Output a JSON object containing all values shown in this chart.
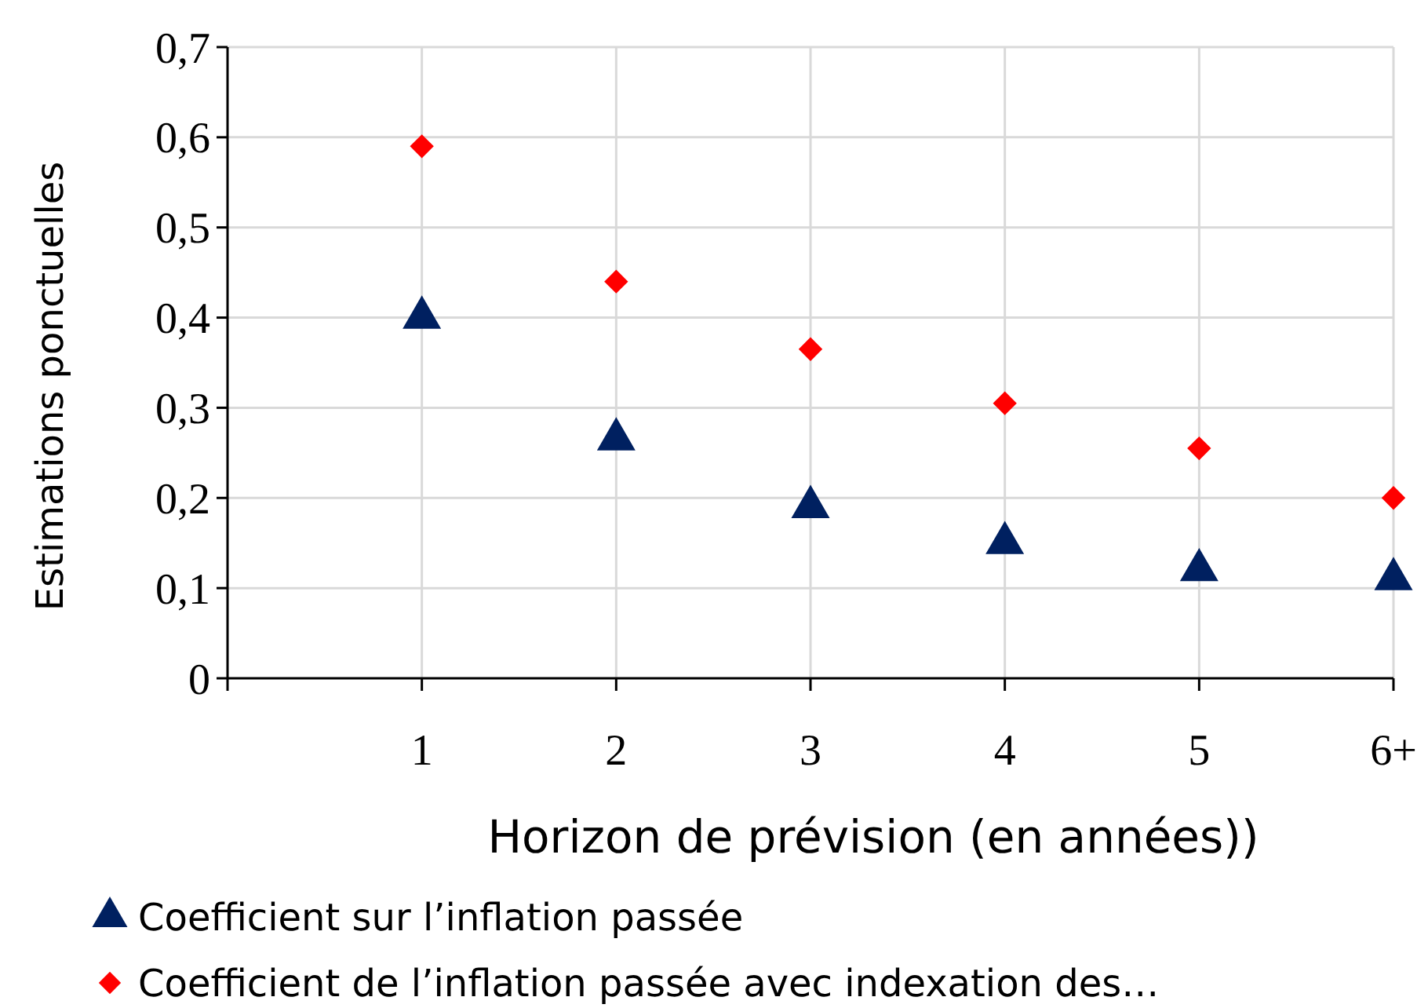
{
  "chart_data": {
    "type": "scatter",
    "xlabel": "Horizon de prévision (en années))",
    "ylabel": "Estimations ponctuelles",
    "x": [
      1,
      2,
      3,
      4,
      5,
      6
    ],
    "xlim": [
      0,
      6
    ],
    "xticks": [
      {
        "value": 0,
        "label": null
      },
      1,
      2,
      3,
      4,
      5,
      {
        "value": 6,
        "label": "6+"
      }
    ],
    "ylim": [
      0,
      0.7
    ],
    "yticks": [
      {
        "value": 0,
        "label": "0"
      },
      {
        "value": 0.1,
        "label": "0,1"
      },
      {
        "value": 0.2,
        "label": "0,2"
      },
      {
        "value": 0.3,
        "label": "0,3"
      },
      {
        "value": 0.4,
        "label": "0,4"
      },
      {
        "value": 0.5,
        "label": "0,5"
      },
      {
        "value": 0.6,
        "label": "0,6"
      },
      {
        "value": 0.7,
        "label": "0,7"
      }
    ],
    "grid": true,
    "legend": "bottom",
    "series": [
      {
        "name": "Coefficient sur l’inflation passée",
        "color": "#002060",
        "marker": "triangle",
        "values": [
          0.4,
          0.265,
          0.19,
          0.15,
          0.12,
          0.11
        ]
      },
      {
        "name": "Coefficient de l’inflation passée avec indexation des…",
        "color": "#ff0000",
        "marker": "diamond",
        "values": [
          0.59,
          0.44,
          0.365,
          0.305,
          0.255,
          0.2
        ]
      }
    ]
  }
}
